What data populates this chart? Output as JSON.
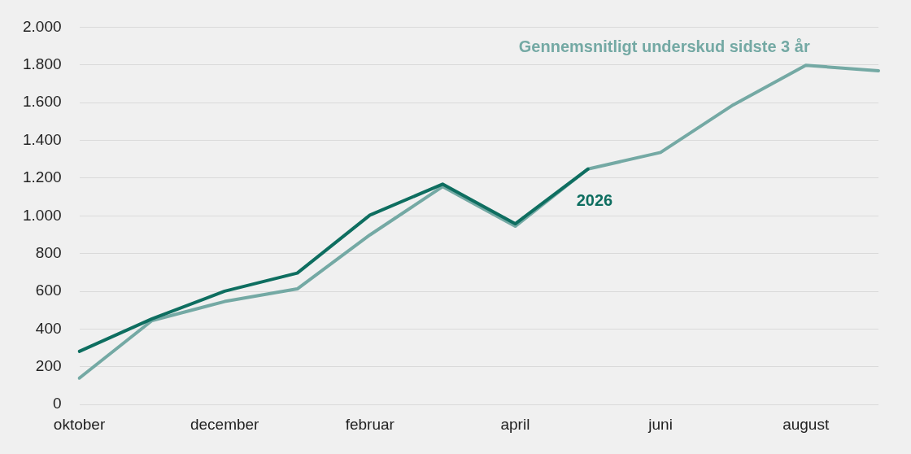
{
  "chart_data": {
    "type": "line",
    "categories": [
      "oktober",
      null,
      "december",
      null,
      "februar",
      null,
      "april",
      null,
      "juni",
      null,
      "august",
      null
    ],
    "series": [
      {
        "name": "Gennemsnitligt underskud sidste 3 år",
        "color": "#74a9a4",
        "values": [
          140,
          445,
          546,
          613,
          899,
          1155,
          945,
          1248,
          1336,
          1588,
          1798,
          1769
        ]
      },
      {
        "name": "2026",
        "color": "#0e6e60",
        "values": [
          282,
          454,
          601,
          697,
          1004,
          1168,
          958,
          1248,
          null,
          null,
          null,
          null
        ]
      }
    ],
    "ylim": [
      0,
      2000
    ],
    "yticks": [
      0,
      200,
      400,
      600,
      800,
      {
        "value": 1000,
        "label": "1.000"
      },
      {
        "value": 1200,
        "label": "1.200"
      },
      {
        "value": 1400,
        "label": "1.400"
      },
      {
        "value": 1600,
        "label": "1.600"
      },
      {
        "value": 1800,
        "label": "1.800"
      },
      {
        "value": 2000,
        "label": "2.000"
      }
    ],
    "grid": "y",
    "legend": false,
    "marker": "none",
    "line_style": "solid"
  }
}
